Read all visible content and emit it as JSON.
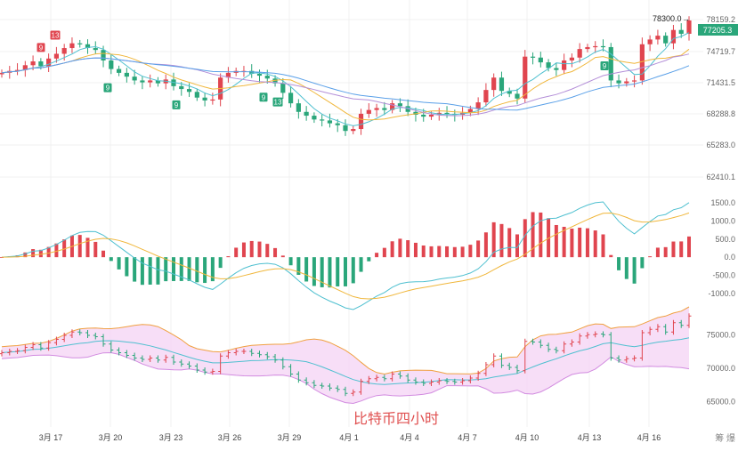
{
  "caption": "比特币四小时",
  "watermark": "筹 爆",
  "last_price": "77205.3",
  "high_marker": "78300.0",
  "colors": {
    "up": "#e0454f",
    "down": "#2aa67a",
    "ma_yellow": "#f0b73c",
    "ma_blue": "#5aa0e8",
    "ma_purple": "#b48fd8",
    "ma_teal": "#4fc0d0",
    "band_fill": "#f4d3f4",
    "band_line": "#d28be0",
    "band_upper": "#f0a040",
    "caption": "#e05050"
  },
  "x_labels": [
    "3月 17",
    "3月 20",
    "3月 23",
    "3月 26",
    "3月 29",
    "4月 1",
    "4月 4",
    "4月 7",
    "4月 10",
    "4月 13",
    "4月 16"
  ],
  "chart_data": [
    {
      "type": "line",
      "title": "",
      "description_series": "candlestick close path with moving averages",
      "y_ticks": [
        "78159.2",
        "74719.7",
        "71431.5",
        "68288.8",
        "65283.0",
        "62410.1"
      ],
      "ylim": [
        60800,
        79200
      ],
      "tags": [
        {
          "label": "9",
          "x": 46,
          "dir": "above"
        },
        {
          "label": "13",
          "x": 62,
          "dir": "above"
        },
        {
          "label": "9",
          "x": 121,
          "dir": "below"
        },
        {
          "label": "9",
          "x": 198,
          "dir": "below"
        },
        {
          "label": "9",
          "x": 296,
          "dir": "below"
        },
        {
          "label": "13",
          "x": 312,
          "dir": "below"
        },
        {
          "label": "9",
          "x": 679,
          "dir": "below"
        }
      ],
      "close": [
        72300,
        72500,
        72600,
        73100,
        73500,
        73000,
        73800,
        74300,
        74900,
        75400,
        75300,
        74900,
        74700,
        73600,
        72700,
        72300,
        71900,
        71500,
        71300,
        71500,
        71200,
        71600,
        70900,
        70600,
        70300,
        69700,
        69400,
        69500,
        71800,
        72300,
        72500,
        72500,
        72200,
        72000,
        71700,
        71200,
        70200,
        69100,
        68200,
        67800,
        67400,
        67300,
        67000,
        66800,
        66200,
        66400,
        68000,
        68400,
        68600,
        68400,
        69100,
        68800,
        68200,
        67900,
        67700,
        67900,
        68100,
        68000,
        67900,
        68100,
        68500,
        69200,
        70500,
        71800,
        70400,
        70100,
        69600,
        74000,
        73900,
        73400,
        72800,
        72600,
        73600,
        73900,
        74800,
        75000,
        75100,
        75000,
        71500,
        71200,
        71400,
        71500,
        75300,
        75800,
        76200,
        75400,
        76800,
        76400,
        77800
      ]
    },
    {
      "type": "bar",
      "title": "",
      "y_ticks": [
        "1500.0",
        "1000.0",
        "500.0",
        "0.0",
        "-500.0",
        "-1000.0"
      ],
      "ylim": [
        -1250,
        1650
      ]
    },
    {
      "type": "line",
      "title": "",
      "y_ticks": [
        "75000.0",
        "70000.0",
        "65000.0"
      ],
      "ylim": [
        62500,
        78500
      ]
    }
  ]
}
